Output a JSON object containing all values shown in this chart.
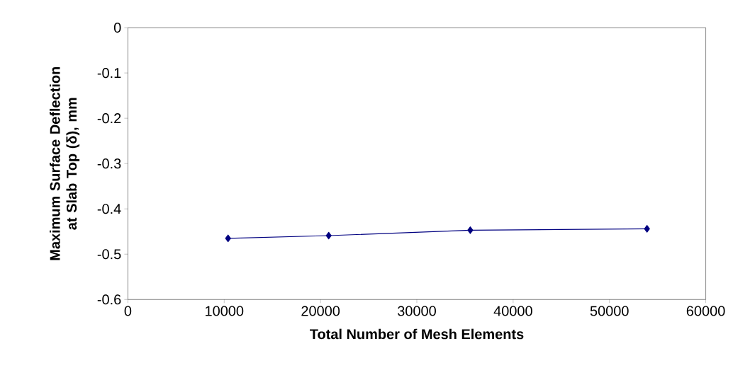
{
  "chart_data": {
    "type": "line",
    "xlabel": "Total Number of Mesh Elements",
    "ylabel": "Maximum Surface Deflection at Slab Top (δ), mm",
    "x": [
      10400,
      20850,
      35550,
      53900
    ],
    "series": [
      {
        "color": "#000080",
        "values": [
          -0.465,
          -0.459,
          -0.447,
          -0.444
        ]
      }
    ],
    "xlim": [
      0,
      60000
    ],
    "xticks": [
      0,
      10000,
      20000,
      30000,
      40000,
      50000,
      60000
    ],
    "ylim": [
      -0.6,
      0
    ],
    "yticks": [
      -0.6,
      -0.5,
      -0.4,
      -0.3,
      -0.2,
      -0.1,
      0
    ],
    "grid": false,
    "marker": "diamond",
    "line_style": "solid"
  }
}
